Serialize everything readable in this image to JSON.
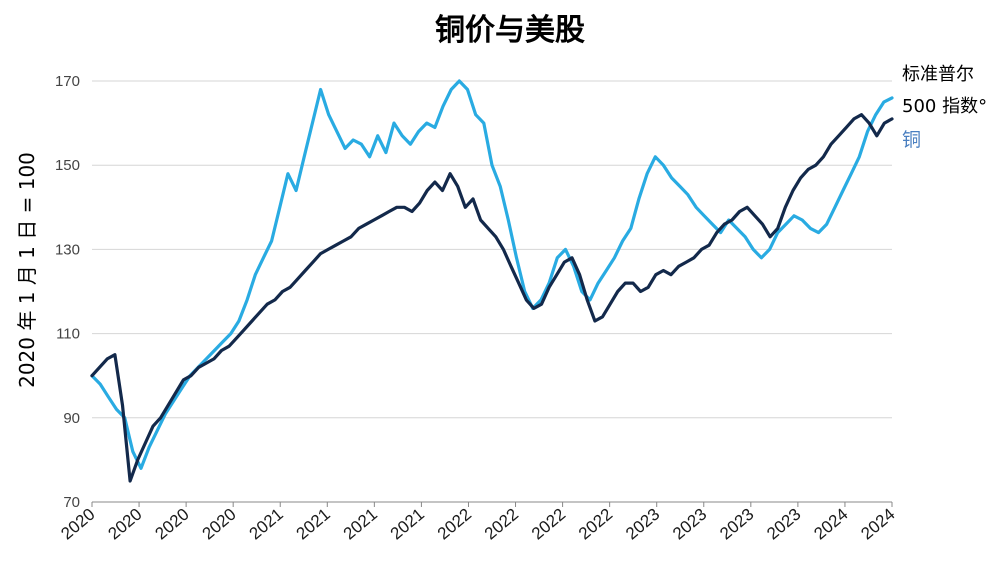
{
  "chart_data": {
    "type": "line",
    "title": "铜价与美股",
    "ylabel": "2020 年 1 月 1 日 = 100",
    "xlabel": "",
    "ylim": [
      70,
      175
    ],
    "yticks": [
      70,
      90,
      110,
      130,
      150,
      170
    ],
    "x_tick_labels": [
      "2020",
      "2020",
      "2020",
      "2020",
      "2021",
      "2021",
      "2021",
      "2021",
      "2022",
      "2022",
      "2022",
      "2022",
      "2023",
      "2023",
      "2023",
      "2023",
      "2024",
      "2024"
    ],
    "grid": true,
    "legend_position": "top-right",
    "series": [
      {
        "name": "标准普尔 500 指数",
        "color": "#13294b",
        "values": [
          100,
          102,
          104,
          105,
          93,
          75,
          80,
          84,
          88,
          90,
          93,
          96,
          99,
          100,
          102,
          103,
          104,
          106,
          107,
          109,
          111,
          113,
          115,
          117,
          118,
          120,
          121,
          123,
          125,
          127,
          129,
          130,
          131,
          132,
          133,
          135,
          136,
          137,
          138,
          139,
          140,
          140,
          139,
          141,
          144,
          146,
          144,
          148,
          145,
          140,
          142,
          137,
          135,
          133,
          130,
          126,
          122,
          118,
          116,
          117,
          121,
          124,
          127,
          128,
          124,
          118,
          113,
          114,
          117,
          120,
          122,
          122,
          120,
          121,
          124,
          125,
          124,
          126,
          127,
          128,
          130,
          131,
          134,
          136,
          137,
          139,
          140,
          138,
          136,
          133,
          135,
          140,
          144,
          147,
          149,
          150,
          152,
          155,
          157,
          159,
          161,
          162,
          160,
          157,
          160,
          161
        ]
      },
      {
        "name": "铜",
        "color": "#29abe2",
        "values": [
          100,
          98,
          95,
          92,
          90,
          82,
          78,
          83,
          87,
          91,
          94,
          97,
          100,
          102,
          104,
          106,
          108,
          110,
          113,
          118,
          124,
          128,
          132,
          140,
          148,
          144,
          152,
          160,
          168,
          162,
          158,
          154,
          156,
          155,
          152,
          157,
          153,
          160,
          157,
          155,
          158,
          160,
          159,
          164,
          168,
          170,
          168,
          162,
          160,
          150,
          145,
          137,
          128,
          120,
          116,
          118,
          122,
          128,
          130,
          126,
          120,
          118,
          122,
          125,
          128,
          132,
          135,
          142,
          148,
          152,
          150,
          147,
          145,
          143,
          140,
          138,
          136,
          134,
          137,
          135,
          133,
          130,
          128,
          130,
          134,
          136,
          138,
          137,
          135,
          134,
          136,
          140,
          144,
          148,
          152,
          158,
          162,
          165,
          166
        ]
      }
    ],
    "legend": [
      {
        "label_line1": "标准普尔",
        "label_line2": "500 指数°",
        "series": 0
      },
      {
        "label_line1": "铜",
        "series": 1
      }
    ]
  }
}
